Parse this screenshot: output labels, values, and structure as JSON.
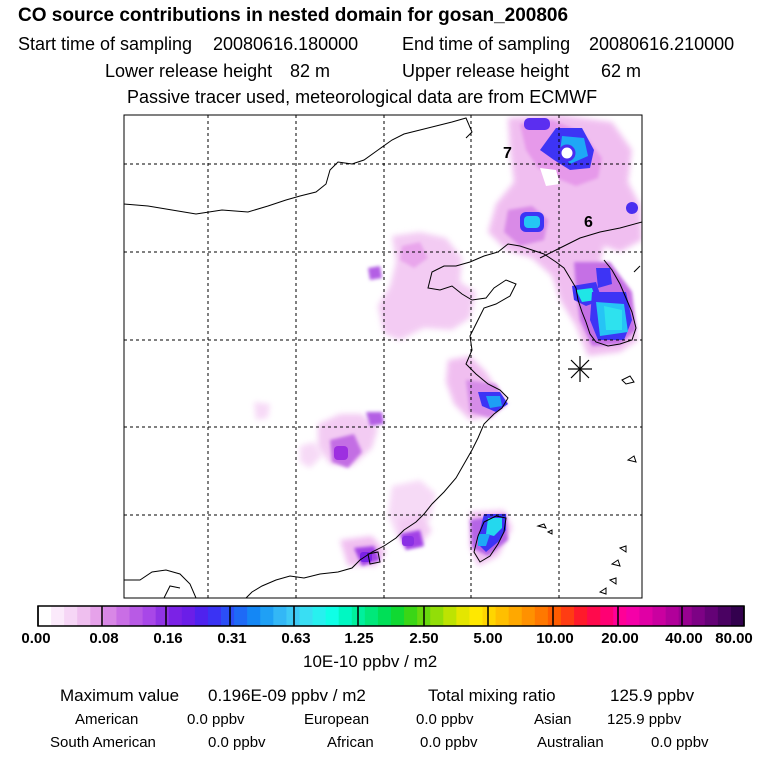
{
  "title": "CO  source contributions in nested domain for gosan_200806",
  "sampling": {
    "start_label": "Start time of sampling",
    "start_value": "20080616.180000",
    "end_label": "End time of sampling",
    "end_value": "20080616.210000"
  },
  "release": {
    "lower_label": "Lower release height",
    "lower_value": "82 m",
    "upper_label": "Upper release height",
    "upper_value": "62 m"
  },
  "note": "Passive tracer used, meteorological data are from ECMWF",
  "map": {
    "labels": [
      "7",
      "6"
    ],
    "receptor_marker": "asterisk",
    "colors": {
      "magenta_light": "#f3c6f3",
      "magenta": "#e79ae9",
      "violet": "#b64fd6",
      "purple": "#9d2fe0",
      "blue": "#3d34f5",
      "sky": "#19a7f4",
      "cyan": "#24e3e8"
    }
  },
  "colorbar": {
    "tick_labels": [
      "0.00",
      "0.08",
      "0.16",
      "0.31",
      "0.63",
      "1.25",
      "2.50",
      "5.00",
      "10.00",
      "20.00",
      "40.00",
      "80.00"
    ],
    "colors": [
      "#ffffff",
      "#fbeafb",
      "#f6d6f6",
      "#efbfef",
      "#e6a2ea",
      "#d887e6",
      "#c96ee5",
      "#b85ae5",
      "#a847e8",
      "#9033e5",
      "#7b22e6",
      "#6b1ee8",
      "#4f22ee",
      "#3a33f4",
      "#2b4ef7",
      "#1e6af6",
      "#1487f5",
      "#1fa0f5",
      "#33b7f6",
      "#3ecaf6",
      "#39def3",
      "#28f0ef",
      "#0fffe6",
      "#00f8c2",
      "#00f09c",
      "#00e87a",
      "#00df57",
      "#10d932",
      "#3ad616",
      "#67d90e",
      "#92de08",
      "#bde302",
      "#e4e600",
      "#ffe800",
      "#ffd500",
      "#ffbf00",
      "#ffa800",
      "#ff9100",
      "#ff7800",
      "#ff5c00",
      "#ff3c13",
      "#ff1a2b",
      "#ff0a4c",
      "#ff0073",
      "#ff0097",
      "#f500a8",
      "#e000a5",
      "#ca00a0",
      "#b1009a",
      "#980190",
      "#7d0285",
      "#640276",
      "#4a0262",
      "#33014e"
    ],
    "units": "10E-10 ppbv / m2"
  },
  "stats": {
    "max_label": "Maximum value",
    "max_value": "0.196E-09 ppbv / m2",
    "total_label": "Total mixing ratio",
    "total_value": "125.9 ppbv",
    "regions": [
      {
        "name": "American",
        "value": "0.0 ppbv"
      },
      {
        "name": "European",
        "value": "0.0 ppbv"
      },
      {
        "name": "Asian",
        "value": "125.9 ppbv"
      },
      {
        "name": "South American",
        "value": "0.0 ppbv"
      },
      {
        "name": "African",
        "value": "0.0 ppbv"
      },
      {
        "name": "Australian",
        "value": "0.0 ppbv"
      }
    ]
  }
}
